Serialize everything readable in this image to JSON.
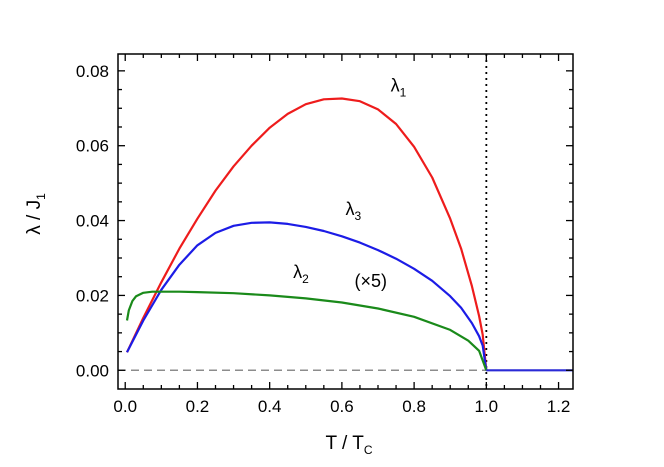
{
  "chart_data": {
    "type": "line",
    "xlabel": {
      "main": "T / T",
      "sub": "C"
    },
    "ylabel": {
      "main": "λ / J",
      "sub": "1"
    },
    "xlim": [
      -0.02,
      1.24
    ],
    "ylim": [
      -0.005,
      0.0845
    ],
    "xticks": [
      0.0,
      0.2,
      0.4,
      0.6,
      0.8,
      1.0,
      1.2
    ],
    "xtick_labels": [
      "0.0",
      "0.2",
      "0.4",
      "0.6",
      "0.8",
      "1.0",
      "1.2"
    ],
    "yticks": [
      0.0,
      0.02,
      0.04,
      0.06,
      0.08
    ],
    "ytick_labels": [
      "0.00",
      "0.02",
      "0.04",
      "0.06",
      "0.08"
    ],
    "reference_lines": [
      {
        "orientation": "horizontal",
        "value": 0.0,
        "style": "dashed",
        "color": "#8c8c8c"
      },
      {
        "orientation": "vertical",
        "value": 1.0,
        "style": "dotted",
        "color": "#000000"
      }
    ],
    "series": [
      {
        "name_main": "λ",
        "name_sub": "1",
        "color": "#ee1c1c",
        "label_pos": [
          0.735,
          0.0745
        ],
        "x": [
          0.005,
          0.05,
          0.1,
          0.15,
          0.2,
          0.25,
          0.3,
          0.35,
          0.4,
          0.45,
          0.5,
          0.55,
          0.6,
          0.65,
          0.7,
          0.75,
          0.8,
          0.85,
          0.9,
          0.93,
          0.96,
          0.98,
          0.99,
          1.0
        ],
        "y": [
          0.0048,
          0.014,
          0.0235,
          0.0325,
          0.0405,
          0.048,
          0.0545,
          0.06,
          0.0648,
          0.0685,
          0.0711,
          0.0724,
          0.0726,
          0.0719,
          0.0697,
          0.0658,
          0.0597,
          0.0515,
          0.0405,
          0.0325,
          0.0225,
          0.0145,
          0.0095,
          0.0
        ]
      },
      {
        "name_main": "λ",
        "name_sub": "3",
        "color": "#1c1ce6",
        "label_pos": [
          0.61,
          0.0415
        ],
        "x": [
          0.005,
          0.05,
          0.1,
          0.15,
          0.2,
          0.25,
          0.3,
          0.35,
          0.4,
          0.45,
          0.5,
          0.55,
          0.6,
          0.65,
          0.7,
          0.75,
          0.8,
          0.85,
          0.9,
          0.93,
          0.96,
          0.98,
          0.99,
          1.0
        ],
        "y": [
          0.0048,
          0.0133,
          0.0215,
          0.0282,
          0.0334,
          0.0367,
          0.0386,
          0.0394,
          0.0395,
          0.0391,
          0.0383,
          0.0372,
          0.0358,
          0.0341,
          0.0321,
          0.0298,
          0.0271,
          0.0239,
          0.0198,
          0.0167,
          0.0126,
          0.0091,
          0.0066,
          0.0
        ]
      },
      {
        "name_main": "λ",
        "name_sub": "2",
        "color": "#1a8a1a",
        "label_pos": [
          0.465,
          0.0247
        ],
        "annotation": "(×5)",
        "annotation_pos": [
          0.635,
          0.0222
        ],
        "x": [
          0.005,
          0.01,
          0.02,
          0.03,
          0.05,
          0.075,
          0.1,
          0.15,
          0.2,
          0.3,
          0.4,
          0.5,
          0.6,
          0.7,
          0.8,
          0.9,
          0.95,
          0.98,
          1.0
        ],
        "y": [
          0.0133,
          0.016,
          0.0185,
          0.0198,
          0.0207,
          0.021,
          0.021,
          0.021,
          0.0209,
          0.0206,
          0.02,
          0.0192,
          0.0181,
          0.0165,
          0.0143,
          0.0108,
          0.0079,
          0.0052,
          0.0
        ]
      },
      {
        "name_main": "",
        "name_sub": "",
        "color": "#2a2ad6",
        "x": [
          1.0,
          1.24
        ],
        "y": [
          0.0,
          0.0
        ]
      }
    ]
  }
}
